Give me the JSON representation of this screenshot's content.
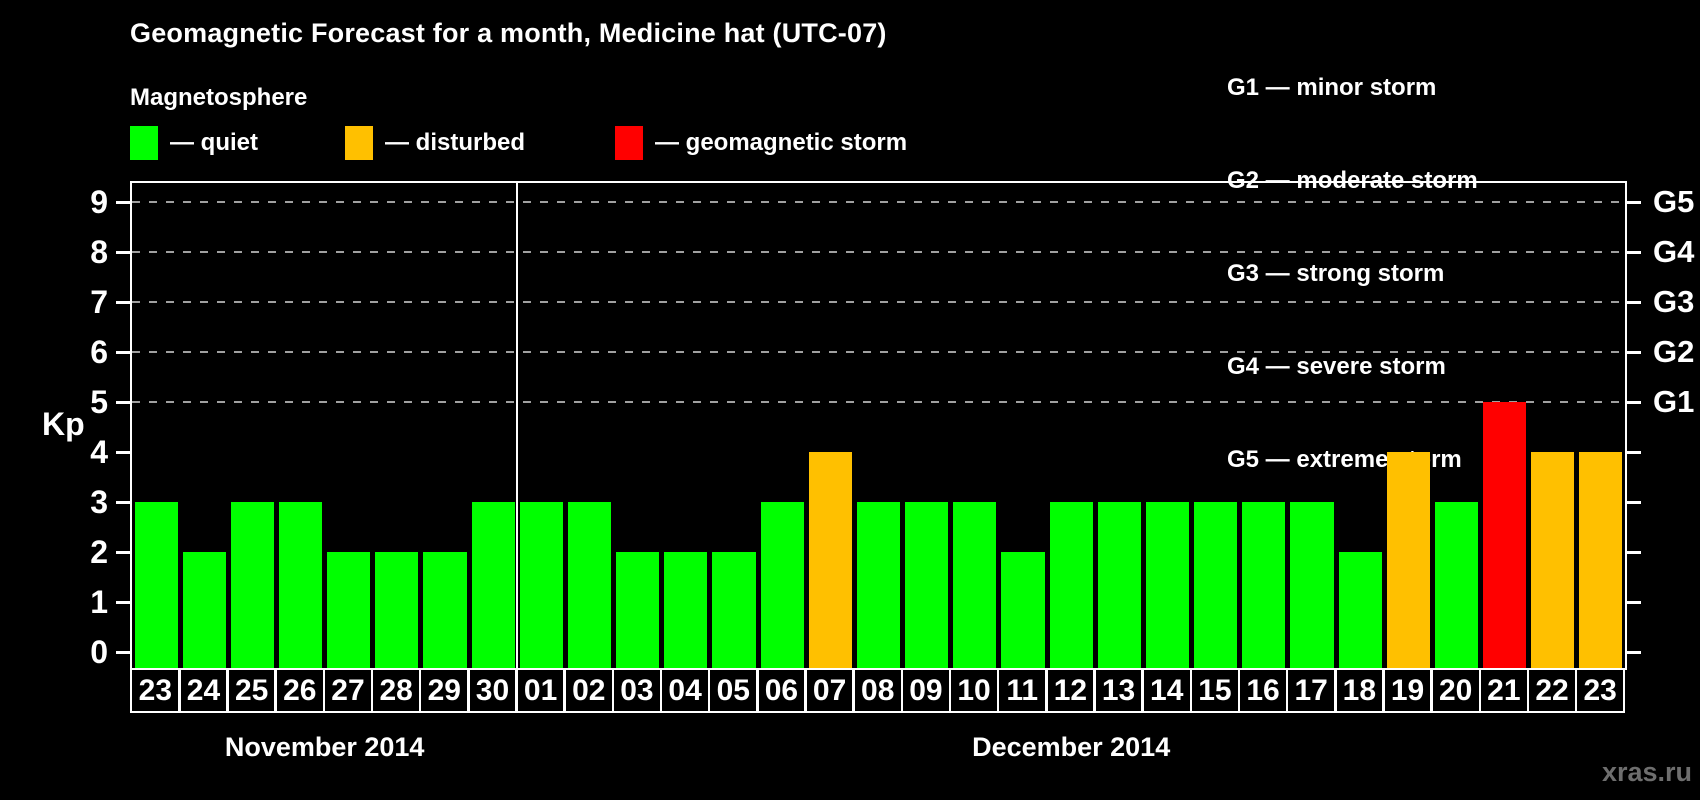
{
  "title": "Geomagnetic Forecast for a month, Medicine hat (UTC-07)",
  "subtitle": "Magnetosphere",
  "legend": {
    "items": [
      {
        "status": "quiet",
        "label": "— quiet",
        "color": "#00ff00"
      },
      {
        "status": "disturbed",
        "label": "— disturbed",
        "color": "#ffc000"
      },
      {
        "status": "storm",
        "label": "— geomagnetic storm",
        "color": "#ff0000"
      }
    ]
  },
  "g_scale_legend": [
    "G1 — minor storm",
    "G2 — moderate storm",
    "G3 — strong storm",
    "G4 — severe storm",
    "G5 — extreme storm"
  ],
  "watermark": "xras.ru",
  "colors": {
    "quiet": "#00ff00",
    "disturbed": "#ffc000",
    "storm": "#ff0000",
    "grid": "#a0a0a0",
    "axis": "#ffffff",
    "separator": "#ffffff",
    "watermark": "#6e6e6e",
    "background": "#000000"
  },
  "chart_data": {
    "type": "bar",
    "title": "Geomagnetic Forecast for a month, Medicine hat (UTC-07)",
    "xlabel": "",
    "ylabel": "Kp",
    "ylim": [
      0,
      9.4
    ],
    "yticks": [
      0,
      1,
      2,
      3,
      4,
      5,
      6,
      7,
      8,
      9
    ],
    "gridlines_at": [
      5,
      6,
      7,
      8,
      9
    ],
    "grid": "dashed horizontal lines at storm levels G1–G5 only",
    "legend_position": "top-left",
    "right_axis_labels": [
      {
        "kp": 5,
        "label": "G1"
      },
      {
        "kp": 6,
        "label": "G2"
      },
      {
        "kp": 7,
        "label": "G3"
      },
      {
        "kp": 8,
        "label": "G4"
      },
      {
        "kp": 9,
        "label": "G5"
      }
    ],
    "months": [
      {
        "label": "November 2014",
        "days": 8
      },
      {
        "label": "December 2014",
        "days": 23
      }
    ],
    "categories": [
      "23",
      "24",
      "25",
      "26",
      "27",
      "28",
      "29",
      "30",
      "01",
      "02",
      "03",
      "04",
      "05",
      "06",
      "07",
      "08",
      "09",
      "10",
      "11",
      "12",
      "13",
      "14",
      "15",
      "16",
      "17",
      "18",
      "19",
      "20",
      "21",
      "22",
      "23"
    ],
    "values": [
      3,
      2,
      3,
      3,
      2,
      2,
      2,
      3,
      3,
      3,
      2,
      2,
      2,
      3,
      4,
      3,
      3,
      3,
      2,
      3,
      3,
      3,
      3,
      3,
      3,
      2,
      4,
      3,
      5,
      4,
      4
    ],
    "thresholds": {
      "disturbed_at": 4,
      "storm_at": 5
    }
  }
}
